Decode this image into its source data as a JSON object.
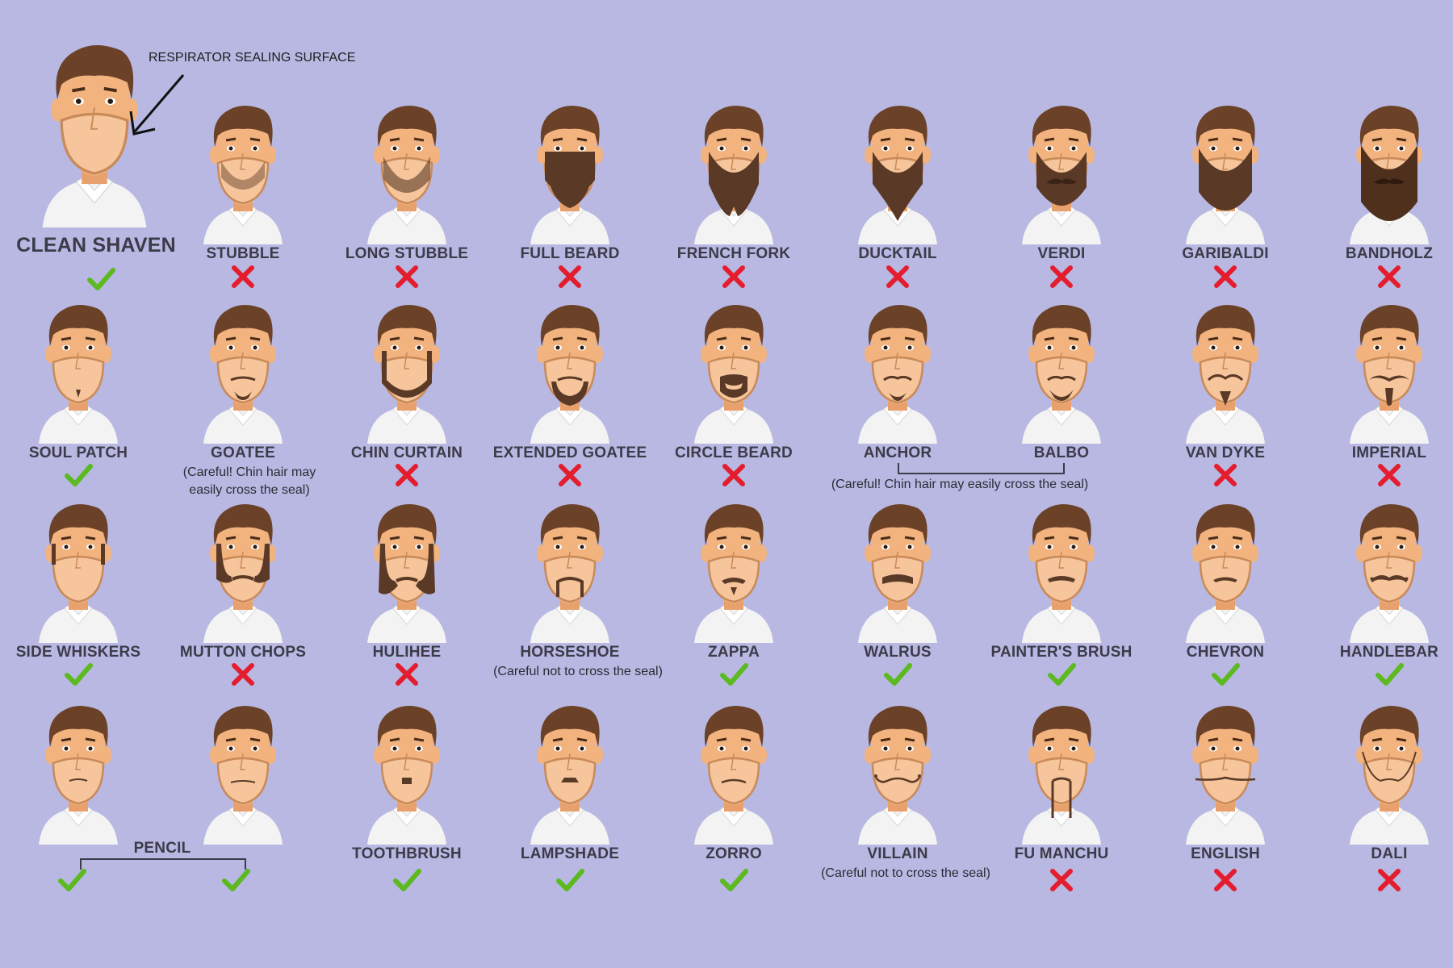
{
  "callout": "RESPIRATOR SEALING SURFACE",
  "colors": {
    "background": "#b8b8e2",
    "ok": "#5cb91f",
    "bad": "#e41d2e",
    "label": "#3b3b4a"
  },
  "icons": {
    "ok": "check-mark-icon",
    "bad": "x-mark-icon"
  },
  "styles": [
    {
      "name": "CLEAN SHAVEN",
      "ok": true,
      "hair": "none",
      "row": 0,
      "col": 0
    },
    {
      "name": "STUBBLE",
      "ok": false,
      "hair": "stubble",
      "row": 0,
      "col": 1
    },
    {
      "name": "LONG STUBBLE",
      "ok": false,
      "hair": "longstubble",
      "row": 0,
      "col": 2
    },
    {
      "name": "FULL BEARD",
      "ok": false,
      "hair": "fullbeard",
      "row": 0,
      "col": 3
    },
    {
      "name": "FRENCH FORK",
      "ok": false,
      "hair": "frenchfork",
      "row": 0,
      "col": 4
    },
    {
      "name": "DUCKTAIL",
      "ok": false,
      "hair": "ducktail",
      "row": 0,
      "col": 5
    },
    {
      "name": "VERDI",
      "ok": false,
      "hair": "verdi",
      "row": 0,
      "col": 6
    },
    {
      "name": "GARIBALDI",
      "ok": false,
      "hair": "garibaldi",
      "row": 0,
      "col": 7
    },
    {
      "name": "BANDHOLZ",
      "ok": false,
      "hair": "bandholz",
      "row": 0,
      "col": 8
    },
    {
      "name": "SOUL PATCH",
      "ok": true,
      "hair": "soulpatch",
      "row": 1,
      "col": 0
    },
    {
      "name": "GOATEE",
      "ok": null,
      "note": "(Careful! Chin hair may\neasily cross the seal)",
      "hair": "goatee",
      "row": 1,
      "col": 1
    },
    {
      "name": "CHIN CURTAIN",
      "ok": false,
      "hair": "chincurtain",
      "row": 1,
      "col": 2
    },
    {
      "name": "EXTENDED GOATEE",
      "ok": false,
      "hair": "extgoatee",
      "row": 1,
      "col": 3
    },
    {
      "name": "CIRCLE BEARD",
      "ok": false,
      "hair": "circle",
      "row": 1,
      "col": 4
    },
    {
      "name": "ANCHOR",
      "ok": null,
      "hair": "anchor",
      "row": 1,
      "col": 5
    },
    {
      "name": "BALBO",
      "ok": null,
      "hair": "balbo",
      "row": 1,
      "col": 6
    },
    {
      "name": "VAN DYKE",
      "ok": false,
      "hair": "vandyke",
      "row": 1,
      "col": 7
    },
    {
      "name": "IMPERIAL",
      "ok": false,
      "hair": "imperial",
      "row": 1,
      "col": 8
    },
    {
      "name": "SIDE WHISKERS",
      "ok": true,
      "hair": "sidewhiskers",
      "row": 2,
      "col": 0
    },
    {
      "name": "MUTTON CHOPS",
      "ok": false,
      "hair": "mutton",
      "row": 2,
      "col": 1
    },
    {
      "name": "HULIHEE",
      "ok": false,
      "hair": "hulihee",
      "row": 2,
      "col": 2
    },
    {
      "name": "HORSESHOE",
      "ok": null,
      "note": "(Careful not to cross the seal)",
      "hair": "horseshoe",
      "row": 2,
      "col": 3
    },
    {
      "name": "ZAPPA",
      "ok": true,
      "hair": "zappa",
      "row": 2,
      "col": 4
    },
    {
      "name": "WALRUS",
      "ok": true,
      "hair": "walrus",
      "row": 2,
      "col": 5
    },
    {
      "name": "PAINTER'S BRUSH",
      "ok": true,
      "hair": "painter",
      "row": 2,
      "col": 6
    },
    {
      "name": "CHEVRON",
      "ok": true,
      "hair": "chevron",
      "row": 2,
      "col": 7
    },
    {
      "name": "HANDLEBAR",
      "ok": true,
      "hair": "handlebar",
      "row": 2,
      "col": 8
    },
    {
      "name": "",
      "ok": true,
      "hair": "pencil",
      "row": 3,
      "col": 0
    },
    {
      "name": "",
      "ok": true,
      "hair": "pencil2",
      "row": 3,
      "col": 1
    },
    {
      "name": "TOOTHBRUSH",
      "ok": true,
      "hair": "toothbrush",
      "row": 3,
      "col": 2
    },
    {
      "name": "LAMPSHADE",
      "ok": true,
      "hair": "lampshade",
      "row": 3,
      "col": 3
    },
    {
      "name": "ZORRO",
      "ok": true,
      "hair": "zorro",
      "row": 3,
      "col": 4
    },
    {
      "name": "VILLAIN",
      "ok": null,
      "note": "(Careful not to cross the seal)",
      "hair": "villain",
      "row": 3,
      "col": 5
    },
    {
      "name": "FU MANCHU",
      "ok": false,
      "hair": "fumanchu",
      "row": 3,
      "col": 6
    },
    {
      "name": "ENGLISH",
      "ok": false,
      "hair": "english",
      "row": 3,
      "col": 7
    },
    {
      "name": "DALI",
      "ok": false,
      "hair": "dali",
      "row": 3,
      "col": 8
    }
  ],
  "groups": {
    "anchor_balbo_note": "(Careful! Chin hair may easily cross the seal)",
    "pencil_label": "PENCIL"
  }
}
